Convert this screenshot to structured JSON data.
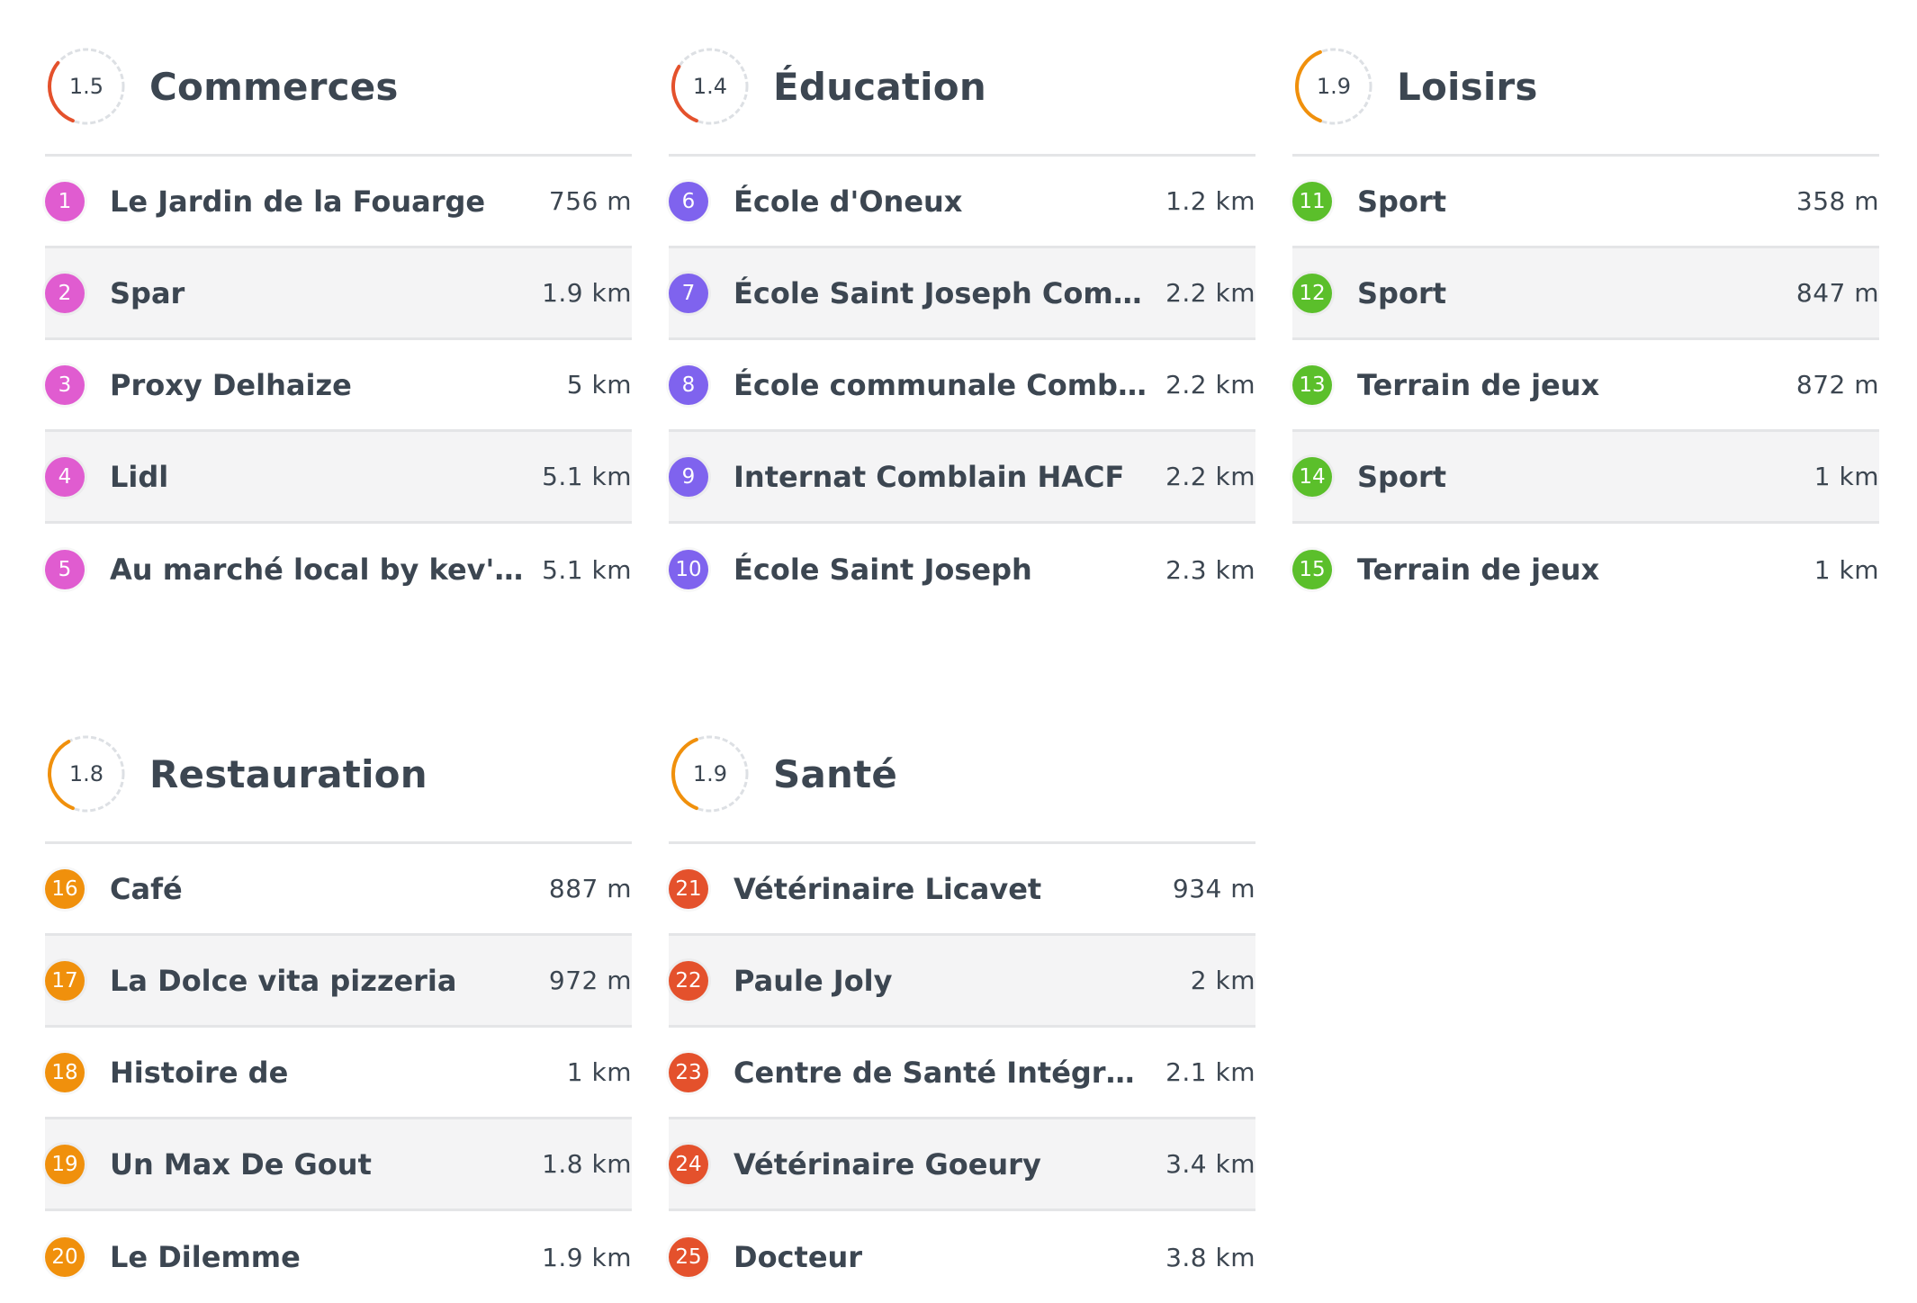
{
  "colors": {
    "commerces": "#e05cd0",
    "education": "#7f63ee",
    "loisirs": "#5bbf2b",
    "restauration": "#f0900c",
    "sante": "#e4512c",
    "gauge_track": "#dde0e4",
    "gauge_arc_low": "#e4512c",
    "gauge_arc_mid": "#f0900c"
  },
  "cards": [
    {
      "title": "Commerces",
      "score": "1.5",
      "color": "#e05cd0",
      "arc": "#e4512c",
      "items": [
        {
          "n": "1",
          "name": "Le Jardin de la Fouarge",
          "dist": "756 m"
        },
        {
          "n": "2",
          "name": "Spar",
          "dist": "1.9 km"
        },
        {
          "n": "3",
          "name": "Proxy Delhaize",
          "dist": "5 km"
        },
        {
          "n": "4",
          "name": "Lidl",
          "dist": "5.1 km"
        },
        {
          "n": "5",
          "name": "Au marché local by kev's c...",
          "dist": "5.1 km"
        }
      ]
    },
    {
      "title": "Éducation",
      "score": "1.4",
      "color": "#7f63ee",
      "arc": "#e4512c",
      "items": [
        {
          "n": "6",
          "name": "École d'Oneux",
          "dist": "1.2 km"
        },
        {
          "n": "7",
          "name": "École Saint Joseph Comblain",
          "dist": "2.2 km"
        },
        {
          "n": "8",
          "name": "École communale Comblain",
          "dist": "2.2 km"
        },
        {
          "n": "9",
          "name": "Internat Comblain HACF",
          "dist": "2.2 km"
        },
        {
          "n": "10",
          "name": "École Saint Joseph",
          "dist": "2.3 km"
        }
      ]
    },
    {
      "title": "Loisirs",
      "score": "1.9",
      "color": "#5bbf2b",
      "arc": "#f0900c",
      "items": [
        {
          "n": "11",
          "name": "Sport",
          "dist": "358 m"
        },
        {
          "n": "12",
          "name": "Sport",
          "dist": "847 m"
        },
        {
          "n": "13",
          "name": "Terrain de jeux",
          "dist": "872 m"
        },
        {
          "n": "14",
          "name": "Sport",
          "dist": "1 km"
        },
        {
          "n": "15",
          "name": "Terrain de jeux",
          "dist": "1 km"
        }
      ]
    },
    {
      "title": "Restauration",
      "score": "1.8",
      "color": "#f0900c",
      "arc": "#f0900c",
      "items": [
        {
          "n": "16",
          "name": "Café",
          "dist": "887 m"
        },
        {
          "n": "17",
          "name": "La Dolce vita pizzeria",
          "dist": "972 m"
        },
        {
          "n": "18",
          "name": "Histoire de",
          "dist": "1 km"
        },
        {
          "n": "19",
          "name": "Un Max De Gout",
          "dist": "1.8 km"
        },
        {
          "n": "20",
          "name": "Le Dilemme",
          "dist": "1.9 km"
        }
      ]
    },
    {
      "title": "Santé",
      "score": "1.9",
      "color": "#e4512c",
      "arc": "#f0900c",
      "items": [
        {
          "n": "21",
          "name": "Vétérinaire Licavet",
          "dist": "934 m"
        },
        {
          "n": "22",
          "name": "Paule Joly",
          "dist": "2 km"
        },
        {
          "n": "23",
          "name": "Centre de Santé Intégrée d...",
          "dist": "2.1 km"
        },
        {
          "n": "24",
          "name": "Vétérinaire Goeury",
          "dist": "3.4 km"
        },
        {
          "n": "25",
          "name": "Docteur",
          "dist": "3.8 km"
        }
      ]
    }
  ]
}
